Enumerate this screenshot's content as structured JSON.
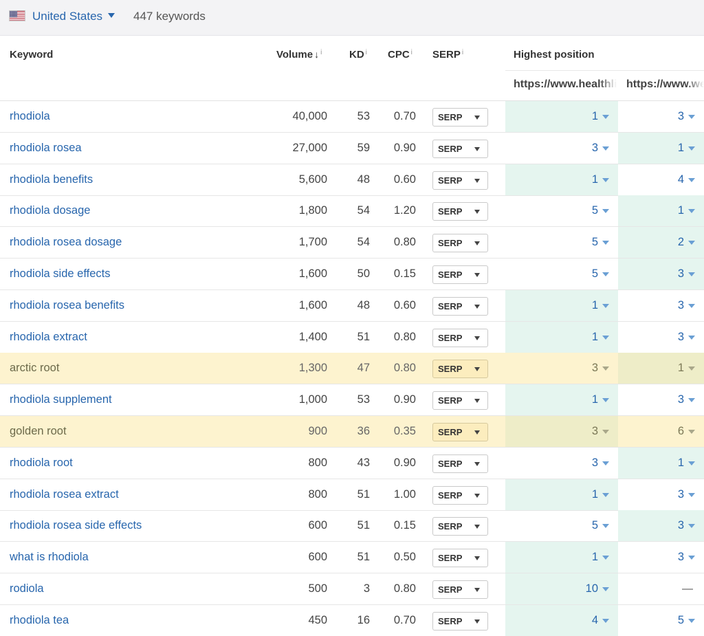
{
  "header": {
    "country": "United States",
    "keyword_count": "447 keywords"
  },
  "columns": {
    "keyword": "Keyword",
    "volume": "Volume",
    "kd": "KD",
    "cpc": "CPC",
    "serp": "SERP",
    "highest_position": "Highest position",
    "info_mark": "i",
    "sort_arrow": "↓",
    "url1": "https://www.healthline.com",
    "url2": "https://www.webmd.com"
  },
  "serp_button_label": "SERP",
  "colors": {
    "link": "#2866ad",
    "highlight_row": "#fdf3cf",
    "best_position": "#e5f5ef"
  },
  "rows": [
    {
      "keyword": "rhodiola",
      "volume": "40,000",
      "kd": "53",
      "cpc": "0.70",
      "pos1": "1",
      "pos2": "3",
      "best": 1,
      "highlight": false
    },
    {
      "keyword": "rhodiola rosea",
      "volume": "27,000",
      "kd": "59",
      "cpc": "0.90",
      "pos1": "3",
      "pos2": "1",
      "best": 2,
      "highlight": false
    },
    {
      "keyword": "rhodiola benefits",
      "volume": "5,600",
      "kd": "48",
      "cpc": "0.60",
      "pos1": "1",
      "pos2": "4",
      "best": 1,
      "highlight": false
    },
    {
      "keyword": "rhodiola dosage",
      "volume": "1,800",
      "kd": "54",
      "cpc": "1.20",
      "pos1": "5",
      "pos2": "1",
      "best": 2,
      "highlight": false
    },
    {
      "keyword": "rhodiola rosea dosage",
      "volume": "1,700",
      "kd": "54",
      "cpc": "0.80",
      "pos1": "5",
      "pos2": "2",
      "best": 2,
      "highlight": false
    },
    {
      "keyword": "rhodiola side effects",
      "volume": "1,600",
      "kd": "50",
      "cpc": "0.15",
      "pos1": "5",
      "pos2": "3",
      "best": 2,
      "highlight": false
    },
    {
      "keyword": "rhodiola rosea benefits",
      "volume": "1,600",
      "kd": "48",
      "cpc": "0.60",
      "pos1": "1",
      "pos2": "3",
      "best": 1,
      "highlight": false
    },
    {
      "keyword": "rhodiola extract",
      "volume": "1,400",
      "kd": "51",
      "cpc": "0.80",
      "pos1": "1",
      "pos2": "3",
      "best": 1,
      "highlight": false
    },
    {
      "keyword": "arctic root",
      "volume": "1,300",
      "kd": "47",
      "cpc": "0.80",
      "pos1": "3",
      "pos2": "1",
      "best": 2,
      "highlight": true
    },
    {
      "keyword": "rhodiola supplement",
      "volume": "1,000",
      "kd": "53",
      "cpc": "0.90",
      "pos1": "1",
      "pos2": "3",
      "best": 1,
      "highlight": false
    },
    {
      "keyword": "golden root",
      "volume": "900",
      "kd": "36",
      "cpc": "0.35",
      "pos1": "3",
      "pos2": "6",
      "best": 1,
      "highlight": true
    },
    {
      "keyword": "rhodiola root",
      "volume": "800",
      "kd": "43",
      "cpc": "0.90",
      "pos1": "3",
      "pos2": "1",
      "best": 2,
      "highlight": false
    },
    {
      "keyword": "rhodiola rosea extract",
      "volume": "800",
      "kd": "51",
      "cpc": "1.00",
      "pos1": "1",
      "pos2": "3",
      "best": 1,
      "highlight": false
    },
    {
      "keyword": "rhodiola rosea side effects",
      "volume": "600",
      "kd": "51",
      "cpc": "0.15",
      "pos1": "5",
      "pos2": "3",
      "best": 2,
      "highlight": false
    },
    {
      "keyword": "what is rhodiola",
      "volume": "600",
      "kd": "51",
      "cpc": "0.50",
      "pos1": "1",
      "pos2": "3",
      "best": 1,
      "highlight": false
    },
    {
      "keyword": "rodiola",
      "volume": "500",
      "kd": "3",
      "cpc": "0.80",
      "pos1": "10",
      "pos2": "—",
      "best": 1,
      "highlight": false
    },
    {
      "keyword": "rhodiola tea",
      "volume": "450",
      "kd": "16",
      "cpc": "0.70",
      "pos1": "4",
      "pos2": "5",
      "best": 1,
      "highlight": false
    }
  ]
}
